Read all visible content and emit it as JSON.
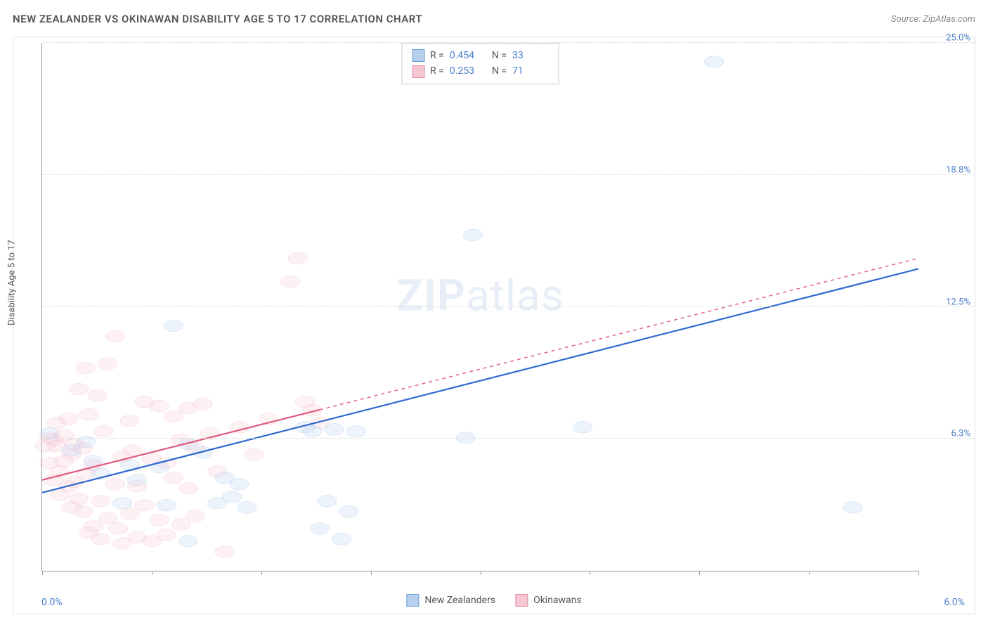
{
  "header": {
    "title": "NEW ZEALANDER VS OKINAWAN DISABILITY AGE 5 TO 17 CORRELATION CHART",
    "source": "Source: ZipAtlas.com"
  },
  "chart": {
    "type": "scatter",
    "y_axis_label": "Disability Age 5 to 17",
    "watermark": "ZIPatlas",
    "background_color": "#ffffff",
    "grid_color": "#dddddd",
    "axis_color": "#999999",
    "xlim": [
      0.0,
      6.0
    ],
    "ylim": [
      0.0,
      25.0
    ],
    "x_ticks_pct": [
      0,
      12.5,
      25,
      37.5,
      50,
      62.5,
      75,
      87.5,
      100
    ],
    "x_range_labels": {
      "min": "0.0%",
      "max": "6.0%"
    },
    "y_ticks": [
      {
        "pct": 25.0,
        "label": "6.3%"
      },
      {
        "pct": 50.0,
        "label": "12.5%"
      },
      {
        "pct": 75.0,
        "label": "18.8%"
      },
      {
        "pct": 100.0,
        "label": "25.0%"
      }
    ],
    "x_label_color": "#4a7ec9",
    "y_label_color": "#4a7ec9",
    "title_fontsize": 15,
    "axis_label_fontsize": 13,
    "tick_label_fontsize": 13,
    "marker_radius": 8,
    "marker_stroke_width": 1.2,
    "marker_fill_opacity": 0.25,
    "trend_line_width": 2.2,
    "trend_dash_pattern": "5,5"
  },
  "legend_stats": {
    "rows": [
      {
        "r_label": "R =",
        "r_value": "0.454",
        "n_label": "N =",
        "n_value": "33",
        "swatch_fill": "#b7d0ee",
        "swatch_stroke": "#6b9ddd"
      },
      {
        "r_label": "R =",
        "r_value": "0.253",
        "n_label": "N =",
        "n_value": "71",
        "swatch_fill": "#f6c6d2",
        "swatch_stroke": "#e88ba4"
      }
    ],
    "label_color": "#555555",
    "value_color": "#4a7ec9"
  },
  "bottom_legend": {
    "items": [
      {
        "label": "New Zealanders",
        "fill": "#b7d0ee",
        "stroke": "#6b9ddd"
      },
      {
        "label": "Okinawans",
        "fill": "#f6c6d2",
        "stroke": "#e88ba4"
      }
    ]
  },
  "series": {
    "new_zealanders": {
      "color_stroke": "#6b9ddd",
      "color_fill": "#b7d0ee",
      "trend_color": "#2f6ad0",
      "trend": {
        "x1": 0.0,
        "y1": 3.7,
        "x2": 6.0,
        "y2": 14.3
      },
      "points": [
        {
          "x": 0.05,
          "y": 6.5
        },
        {
          "x": 0.4,
          "y": 4.6
        },
        {
          "x": 0.6,
          "y": 5.0
        },
        {
          "x": 0.65,
          "y": 4.3
        },
        {
          "x": 0.55,
          "y": 3.2
        },
        {
          "x": 0.8,
          "y": 4.9
        },
        {
          "x": 0.85,
          "y": 3.1
        },
        {
          "x": 0.9,
          "y": 11.6
        },
        {
          "x": 1.0,
          "y": 1.4
        },
        {
          "x": 1.1,
          "y": 5.6
        },
        {
          "x": 1.2,
          "y": 3.2
        },
        {
          "x": 1.25,
          "y": 4.4
        },
        {
          "x": 1.3,
          "y": 3.5
        },
        {
          "x": 1.35,
          "y": 4.1
        },
        {
          "x": 1.4,
          "y": 3.0
        },
        {
          "x": 1.9,
          "y": 2.0
        },
        {
          "x": 1.85,
          "y": 6.6
        },
        {
          "x": 1.95,
          "y": 3.3
        },
        {
          "x": 1.8,
          "y": 6.8
        },
        {
          "x": 2.05,
          "y": 1.5
        },
        {
          "x": 2.0,
          "y": 6.7
        },
        {
          "x": 2.1,
          "y": 2.8
        },
        {
          "x": 2.15,
          "y": 6.6
        },
        {
          "x": 2.9,
          "y": 6.3
        },
        {
          "x": 2.95,
          "y": 15.9
        },
        {
          "x": 2.7,
          "y": 23.8
        },
        {
          "x": 3.7,
          "y": 6.8
        },
        {
          "x": 4.6,
          "y": 24.1
        },
        {
          "x": 5.55,
          "y": 3.0
        },
        {
          "x": 0.2,
          "y": 5.7
        },
        {
          "x": 0.3,
          "y": 6.1
        },
        {
          "x": 0.35,
          "y": 5.2
        },
        {
          "x": 1.0,
          "y": 6.0
        }
      ]
    },
    "okinawans": {
      "color_stroke": "#e88ba4",
      "color_fill": "#f6c6d2",
      "trend_color": "#e05a7c",
      "trend_solid_xmax": 1.9,
      "trend": {
        "x1": 0.0,
        "y1": 4.3,
        "x2": 6.0,
        "y2": 14.8
      },
      "points": [
        {
          "x": 0.02,
          "y": 5.9
        },
        {
          "x": 0.05,
          "y": 6.3
        },
        {
          "x": 0.05,
          "y": 5.1
        },
        {
          "x": 0.08,
          "y": 4.3
        },
        {
          "x": 0.08,
          "y": 6.2
        },
        {
          "x": 0.1,
          "y": 5.9
        },
        {
          "x": 0.1,
          "y": 7.0
        },
        {
          "x": 0.12,
          "y": 4.7
        },
        {
          "x": 0.12,
          "y": 3.6
        },
        {
          "x": 0.15,
          "y": 5.2
        },
        {
          "x": 0.15,
          "y": 6.4
        },
        {
          "x": 0.18,
          "y": 4.0
        },
        {
          "x": 0.18,
          "y": 7.2
        },
        {
          "x": 0.2,
          "y": 3.0
        },
        {
          "x": 0.2,
          "y": 5.5
        },
        {
          "x": 0.22,
          "y": 6.0
        },
        {
          "x": 0.22,
          "y": 4.2
        },
        {
          "x": 0.25,
          "y": 8.6
        },
        {
          "x": 0.25,
          "y": 3.4
        },
        {
          "x": 0.28,
          "y": 5.8
        },
        {
          "x": 0.28,
          "y": 2.8
        },
        {
          "x": 0.3,
          "y": 9.6
        },
        {
          "x": 0.3,
          "y": 4.6
        },
        {
          "x": 0.32,
          "y": 7.4
        },
        {
          "x": 0.32,
          "y": 1.8
        },
        {
          "x": 0.35,
          "y": 2.1
        },
        {
          "x": 0.35,
          "y": 5.0
        },
        {
          "x": 0.38,
          "y": 8.3
        },
        {
          "x": 0.4,
          "y": 3.3
        },
        {
          "x": 0.4,
          "y": 1.5
        },
        {
          "x": 0.42,
          "y": 6.6
        },
        {
          "x": 0.45,
          "y": 2.5
        },
        {
          "x": 0.45,
          "y": 9.8
        },
        {
          "x": 0.5,
          "y": 11.1
        },
        {
          "x": 0.5,
          "y": 4.1
        },
        {
          "x": 0.52,
          "y": 2.0
        },
        {
          "x": 0.55,
          "y": 5.4
        },
        {
          "x": 0.55,
          "y": 1.3
        },
        {
          "x": 0.6,
          "y": 7.1
        },
        {
          "x": 0.6,
          "y": 2.7
        },
        {
          "x": 0.62,
          "y": 5.7
        },
        {
          "x": 0.65,
          "y": 1.6
        },
        {
          "x": 0.65,
          "y": 4.0
        },
        {
          "x": 0.7,
          "y": 3.1
        },
        {
          "x": 0.7,
          "y": 8.0
        },
        {
          "x": 0.75,
          "y": 1.4
        },
        {
          "x": 0.75,
          "y": 5.3
        },
        {
          "x": 0.8,
          "y": 2.4
        },
        {
          "x": 0.8,
          "y": 7.8
        },
        {
          "x": 0.85,
          "y": 1.7
        },
        {
          "x": 0.85,
          "y": 5.1
        },
        {
          "x": 0.9,
          "y": 4.4
        },
        {
          "x": 0.9,
          "y": 7.3
        },
        {
          "x": 0.95,
          "y": 2.2
        },
        {
          "x": 0.95,
          "y": 6.2
        },
        {
          "x": 1.0,
          "y": 7.7
        },
        {
          "x": 1.0,
          "y": 3.9
        },
        {
          "x": 1.05,
          "y": 5.8
        },
        {
          "x": 1.05,
          "y": 2.6
        },
        {
          "x": 1.1,
          "y": 7.9
        },
        {
          "x": 1.15,
          "y": 6.5
        },
        {
          "x": 1.2,
          "y": 4.7
        },
        {
          "x": 1.25,
          "y": 0.9
        },
        {
          "x": 1.35,
          "y": 6.8
        },
        {
          "x": 1.45,
          "y": 5.5
        },
        {
          "x": 1.55,
          "y": 7.2
        },
        {
          "x": 1.7,
          "y": 13.7
        },
        {
          "x": 1.75,
          "y": 14.8
        },
        {
          "x": 1.8,
          "y": 8.0
        },
        {
          "x": 1.85,
          "y": 7.6
        },
        {
          "x": 1.9,
          "y": 7.0
        }
      ]
    }
  }
}
